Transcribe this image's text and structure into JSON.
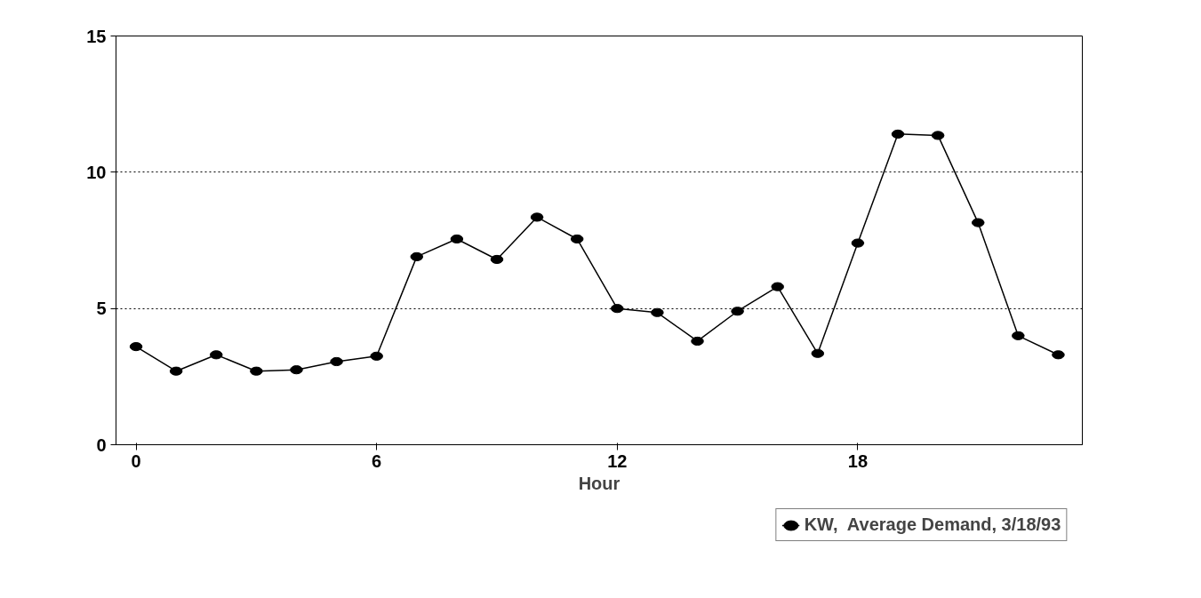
{
  "chart_data": {
    "type": "line",
    "xlabel": "Hour",
    "x": [
      0,
      1,
      2,
      3,
      4,
      5,
      6,
      7,
      8,
      9,
      10,
      11,
      12,
      13,
      14,
      15,
      16,
      17,
      18,
      19,
      20,
      21,
      22,
      23
    ],
    "series": [
      {
        "name": "KW,  Average Demand, 3/18/93",
        "color": "#000000",
        "values": [
          3.6,
          2.7,
          3.3,
          2.7,
          2.75,
          3.05,
          3.25,
          6.9,
          7.55,
          6.8,
          8.35,
          7.55,
          5.0,
          4.85,
          3.8,
          4.9,
          5.8,
          3.35,
          7.4,
          11.4,
          11.35,
          8.15,
          4.0,
          3.3
        ]
      }
    ],
    "xlim": [
      -0.5,
      23.6
    ],
    "ylim": [
      0,
      15
    ],
    "xticks": [
      0,
      6,
      12,
      18
    ],
    "yticks": [
      0,
      5,
      10,
      15
    ],
    "grid": "y",
    "legend": "bottom",
    "marker": "circle",
    "line_style": "solid"
  }
}
